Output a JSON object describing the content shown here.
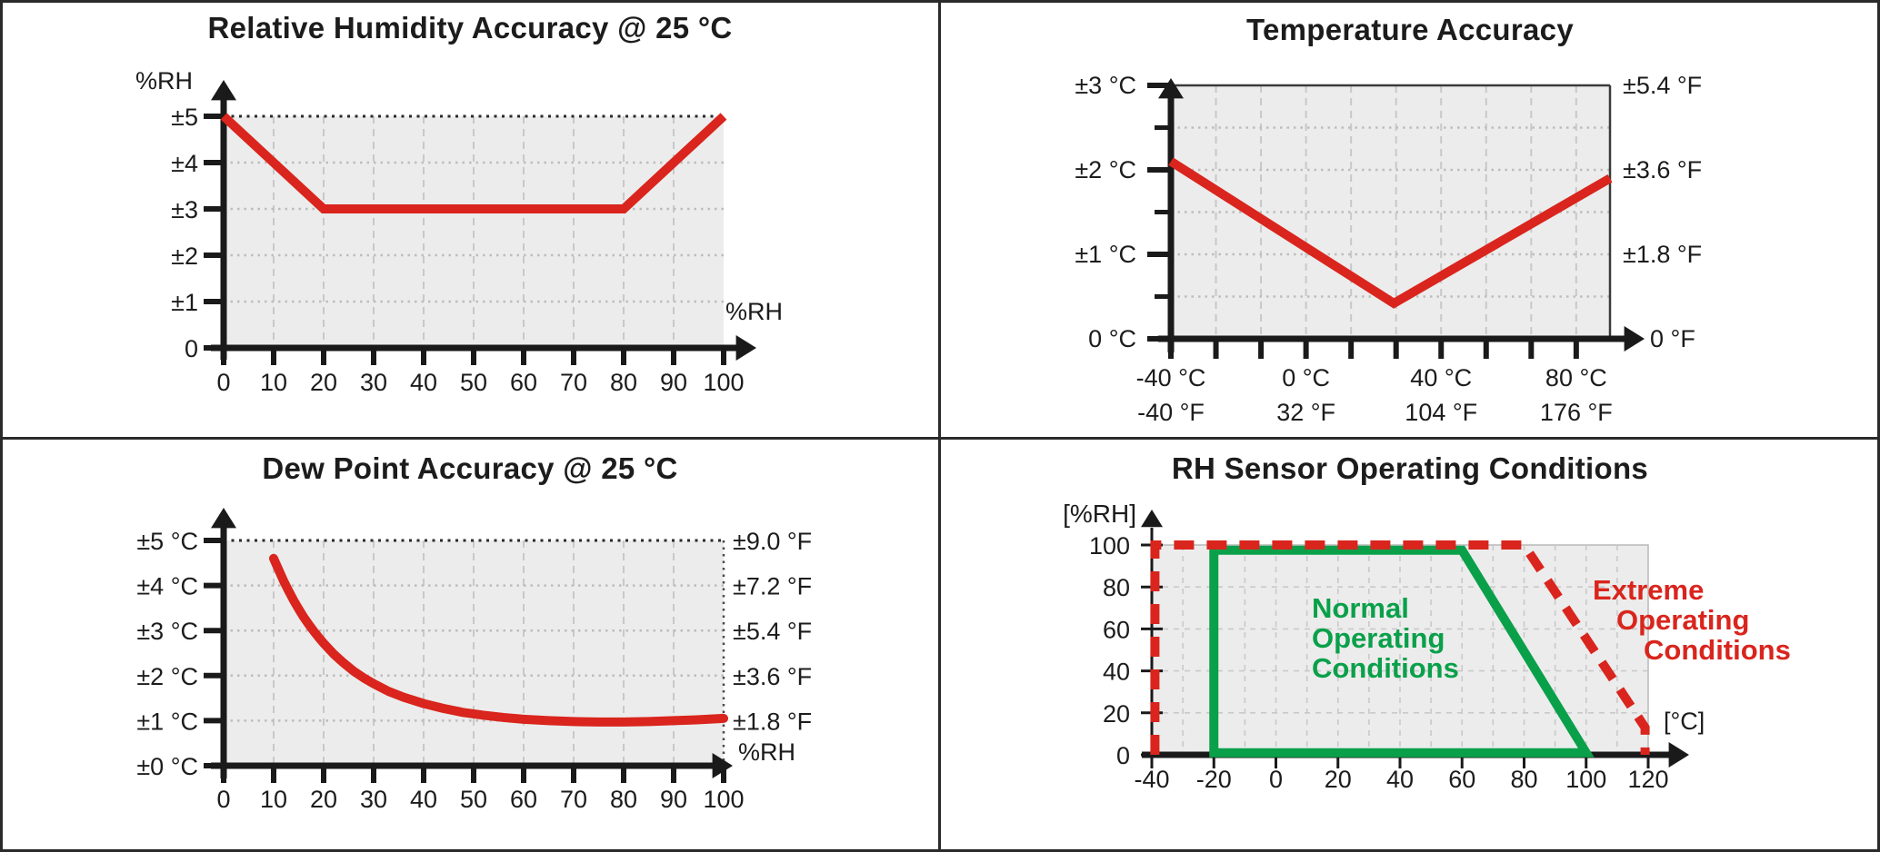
{
  "page": {
    "background": "#ffffff",
    "border_color": "#2a2a2a"
  },
  "colors": {
    "red": "#d9251d",
    "green": "#0aa04a",
    "plot_bg": "#ececec",
    "grid_dash": "#c8c8c8",
    "grid_dot": "#bdbdbd",
    "grid_area": "#c9c9c9",
    "dark_dotted": "#2a2a2a",
    "axis": "#1a1a1a",
    "text": "#1c1c1c"
  },
  "chart_data": [
    {
      "id": "rh-accuracy",
      "type": "line",
      "title": "Relative Humidity Accuracy @ 25 °C",
      "x_axis": {
        "unit": "%RH",
        "range": [
          0,
          100
        ],
        "ticks": [
          0,
          10,
          20,
          30,
          40,
          50,
          60,
          70,
          80,
          90,
          100
        ],
        "tick_labels": [
          "0",
          "10",
          "20",
          "30",
          "40",
          "50",
          "60",
          "70",
          "80",
          "90",
          "100"
        ]
      },
      "y_axis": {
        "unit": "%RH",
        "range": [
          0,
          5
        ],
        "ticks": [
          0,
          1,
          2,
          3,
          4,
          5
        ],
        "tick_labels": [
          "0",
          "±1",
          "±2",
          "±3",
          "±4",
          "±5"
        ]
      },
      "series": [
        {
          "name": "RH accuracy (%RH)",
          "color_key": "red",
          "points": [
            [
              0,
              5
            ],
            [
              20,
              3
            ],
            [
              80,
              3
            ],
            [
              100,
              5
            ]
          ]
        }
      ]
    },
    {
      "id": "temperature-accuracy",
      "type": "line",
      "title": "Temperature Accuracy",
      "x_axis": {
        "range": [
          -40,
          90
        ],
        "ticks": [
          -40,
          0,
          40,
          80
        ],
        "tick_labels_celsius": [
          "-40 °C",
          "0 °C",
          "40 °C",
          "80 °C"
        ],
        "tick_labels_fahrenheit": [
          "-40 °F",
          "32 °F",
          "104 °F",
          "176 °F"
        ]
      },
      "y_axis": {
        "range": [
          0,
          3
        ],
        "ticks": [
          0,
          1,
          2,
          3
        ],
        "tick_labels": [
          "0 °C",
          "±1 °C",
          "±2 °C",
          "±3 °C"
        ],
        "minor_ticks": [
          0.5,
          1.5,
          2.5
        ]
      },
      "y_axis_right": {
        "ticks": [
          0,
          1,
          2,
          3
        ],
        "tick_labels": [
          "0 °F",
          "±1.8 °F",
          "±3.6 °F",
          "±5.4 °F"
        ]
      },
      "series": [
        {
          "name": "Temperature accuracy (°C)",
          "color_key": "red",
          "points": [
            [
              -40,
              2.1
            ],
            [
              26,
              0.42
            ],
            [
              90,
              1.9
            ]
          ]
        }
      ]
    },
    {
      "id": "dew-point-accuracy",
      "type": "line",
      "title": "Dew Point Accuracy @ 25 °C",
      "x_axis": {
        "unit": "%RH",
        "range": [
          0,
          100
        ],
        "ticks": [
          0,
          10,
          20,
          30,
          40,
          50,
          60,
          70,
          80,
          90,
          100
        ],
        "tick_labels": [
          "0",
          "10",
          "20",
          "30",
          "40",
          "50",
          "60",
          "70",
          "80",
          "90",
          "100"
        ]
      },
      "y_axis": {
        "range": [
          0,
          5
        ],
        "ticks": [
          0,
          1,
          2,
          3,
          4,
          5
        ],
        "tick_labels": [
          "±0 °C",
          "±1 °C",
          "±2 °C",
          "±3 °C",
          "±4 °C",
          "±5 °C"
        ]
      },
      "y_axis_right": {
        "ticks": [
          1,
          2,
          3,
          4,
          5
        ],
        "tick_labels": [
          "±1.8 °F",
          "±3.6 °F",
          "±5.4 °F",
          "±7.2 °F",
          "±9.0 °F"
        ]
      },
      "series": [
        {
          "name": "Dew point accuracy (°C)",
          "color_key": "red",
          "points": [
            [
              10,
              4.6
            ],
            [
              11,
              4.35
            ],
            [
              12,
              4.1
            ],
            [
              13,
              3.88
            ],
            [
              14,
              3.67
            ],
            [
              15,
              3.48
            ],
            [
              16,
              3.3
            ],
            [
              17,
              3.14
            ],
            [
              18,
              2.99
            ],
            [
              19,
              2.85
            ],
            [
              20,
              2.72
            ],
            [
              22,
              2.48
            ],
            [
              24,
              2.28
            ],
            [
              26,
              2.1
            ],
            [
              28,
              1.95
            ],
            [
              30,
              1.82
            ],
            [
              33,
              1.65
            ],
            [
              36,
              1.52
            ],
            [
              40,
              1.38
            ],
            [
              44,
              1.27
            ],
            [
              48,
              1.18
            ],
            [
              52,
              1.12
            ],
            [
              56,
              1.07
            ],
            [
              60,
              1.03
            ],
            [
              65,
              1.0
            ],
            [
              70,
              0.98
            ],
            [
              75,
              0.97
            ],
            [
              80,
              0.97
            ],
            [
              85,
              0.98
            ],
            [
              90,
              1.0
            ],
            [
              95,
              1.02
            ],
            [
              100,
              1.05
            ]
          ]
        }
      ]
    },
    {
      "id": "rh-sensor-operating-conditions",
      "type": "area",
      "title": "RH Sensor Operating Conditions",
      "x_axis": {
        "unit": "[°C]",
        "range": [
          -40,
          120
        ],
        "ticks": [
          -40,
          -20,
          0,
          20,
          40,
          60,
          80,
          100,
          120
        ],
        "tick_labels": [
          "-40",
          "-20",
          "0",
          "20",
          "40",
          "60",
          "80",
          "100",
          "120"
        ]
      },
      "y_axis": {
        "unit": "[%RH]",
        "range": [
          0,
          100
        ],
        "ticks": [
          0,
          20,
          40,
          60,
          80,
          100
        ],
        "tick_labels": [
          "0",
          "20",
          "40",
          "60",
          "80",
          "100"
        ]
      },
      "regions": [
        {
          "name": "Normal Operating Conditions",
          "label_lines": [
            "Normal",
            "Operating",
            "Conditions"
          ],
          "color_key": "green",
          "line_style": "solid",
          "closed": true,
          "points": [
            [
              -20,
              1
            ],
            [
              -20,
              97.5
            ],
            [
              60,
              97.5
            ],
            [
              100,
              1
            ]
          ]
        },
        {
          "name": "Extreme Operating Conditions",
          "label_lines": [
            "Extreme",
            "Operating",
            "Conditions"
          ],
          "color_key": "red",
          "line_style": "dashed",
          "closed": false,
          "points": [
            [
              -39,
              0
            ],
            [
              -39,
              100
            ],
            [
              80,
              100
            ],
            [
              119,
              13
            ],
            [
              119,
              0
            ]
          ]
        }
      ]
    }
  ]
}
